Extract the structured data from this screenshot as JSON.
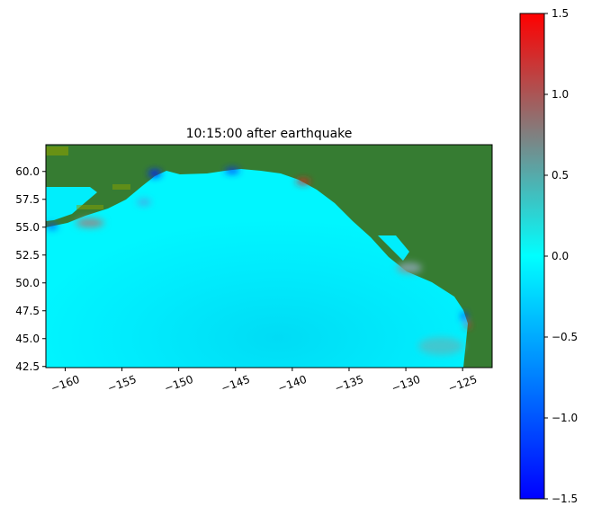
{
  "chart_data": {
    "type": "heatmap",
    "title": "10:15:00 after earthquake",
    "xlabel": "",
    "ylabel": "",
    "xlim": [
      -161.7,
      -122.4
    ],
    "ylim": [
      42.4,
      62.4
    ],
    "xticks": [
      -160,
      -155,
      -150,
      -145,
      -140,
      -135,
      -130,
      -125
    ],
    "xtick_labels": [
      "−160",
      "−155",
      "−150",
      "−145",
      "−140",
      "−135",
      "−130",
      "−125"
    ],
    "yticks": [
      42.5,
      45.0,
      47.5,
      50.0,
      52.5,
      55.0,
      57.5,
      60.0
    ],
    "ytick_labels": [
      "42.5",
      "45.0",
      "47.5",
      "50.0",
      "52.5",
      "55.0",
      "57.5",
      "60.0"
    ],
    "grid": false,
    "colorbar": {
      "range": [
        -1.5,
        1.5
      ],
      "ticks": [
        -1.5,
        -1.0,
        -0.5,
        0.0,
        0.5,
        1.0,
        1.5
      ],
      "tick_labels": [
        "−1.5",
        "−1.0",
        "−0.5",
        "0.0",
        "0.5",
        "1.0",
        "1.5"
      ],
      "colors": [
        "#0000ff",
        "#00ffff",
        "#808080",
        "#ff0000"
      ],
      "position": "right"
    },
    "land_color": "#367c32",
    "ocean_color_at_zero": "#00ffff"
  }
}
